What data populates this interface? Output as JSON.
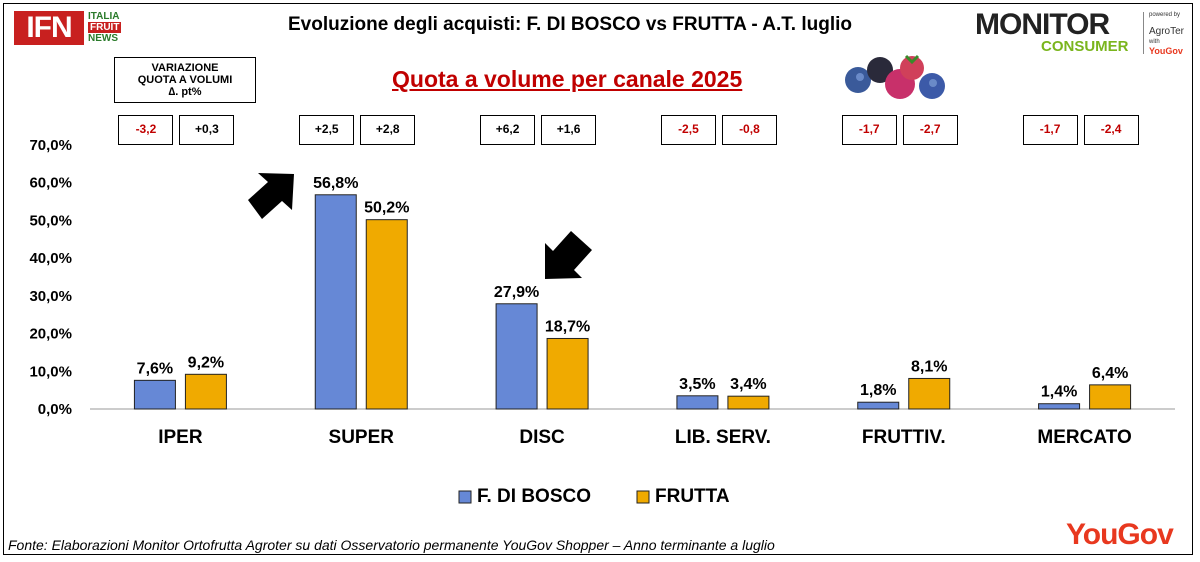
{
  "header": {
    "title": "Evoluzione degli acquisti: F. DI BOSCO vs FRUTTA  - A.T. luglio",
    "subtitle": "Quota a volume per canale 2025",
    "ifn_logo": {
      "main": "IFN",
      "line1": "ITALIA",
      "line2": "FRUIT",
      "line3": "NEWS"
    },
    "monitor_logo": {
      "line1": "MONITOR",
      "line2": "CONSUMER",
      "powered": "powered by",
      "partner": "AgroTer",
      "with": "with",
      "partner2": "YouGov"
    }
  },
  "variation_legend": {
    "line1": "VARIAZIONE",
    "line2": "QUOTA A VOLUMI",
    "line3": "∆. pt%"
  },
  "variations": [
    {
      "channel": "IPER",
      "fdb": "-3,2",
      "frutta": "+0,3"
    },
    {
      "channel": "SUPER",
      "fdb": "+2,5",
      "frutta": "+2,8"
    },
    {
      "channel": "DISC",
      "fdb": "+6,2",
      "frutta": "+1,6"
    },
    {
      "channel": "LIB. SERV.",
      "fdb": "-2,5",
      "frutta": "-0,8"
    },
    {
      "channel": "FRUTTIV.",
      "fdb": "-1,7",
      "frutta": "-2,7"
    },
    {
      "channel": "MERCATO",
      "fdb": "-1,7",
      "frutta": "-2,4"
    }
  ],
  "colors": {
    "fdb": "#6688d6",
    "frutta": "#f0aa00",
    "negative": "#c00000",
    "positive": "#000000",
    "brand_red": "#e8381f"
  },
  "chart_data": {
    "type": "bar",
    "categories": [
      "IPER",
      "SUPER",
      "DISC",
      "LIB. SERV.",
      "FRUTTIV.",
      "MERCATO"
    ],
    "series": [
      {
        "name": "F. DI BOSCO",
        "values": [
          7.6,
          56.8,
          27.9,
          3.5,
          1.8,
          1.4
        ],
        "labels": [
          "7,6%",
          "56,8%",
          "27,9%",
          "3,5%",
          "1,8%",
          "1,4%"
        ]
      },
      {
        "name": "FRUTTA",
        "values": [
          9.2,
          50.2,
          18.7,
          3.4,
          8.1,
          6.4
        ],
        "labels": [
          "9,2%",
          "50,2%",
          "18,7%",
          "3,4%",
          "8,1%",
          "6,4%"
        ]
      }
    ],
    "yticks": [
      "0,0%",
      "10,0%",
      "20,0%",
      "30,0%",
      "40,0%",
      "50,0%",
      "60,0%",
      "70,0%"
    ],
    "ylim": [
      0,
      70
    ],
    "grid": false,
    "legend_position": "bottom",
    "title": "Quota a volume per canale 2025"
  },
  "footer": {
    "source": "Fonte: Elaborazioni Monitor Ortofrutta Agroter su dati Osservatorio permanente YouGov Shopper  – Anno terminante a luglio",
    "brand": "YouGov"
  }
}
